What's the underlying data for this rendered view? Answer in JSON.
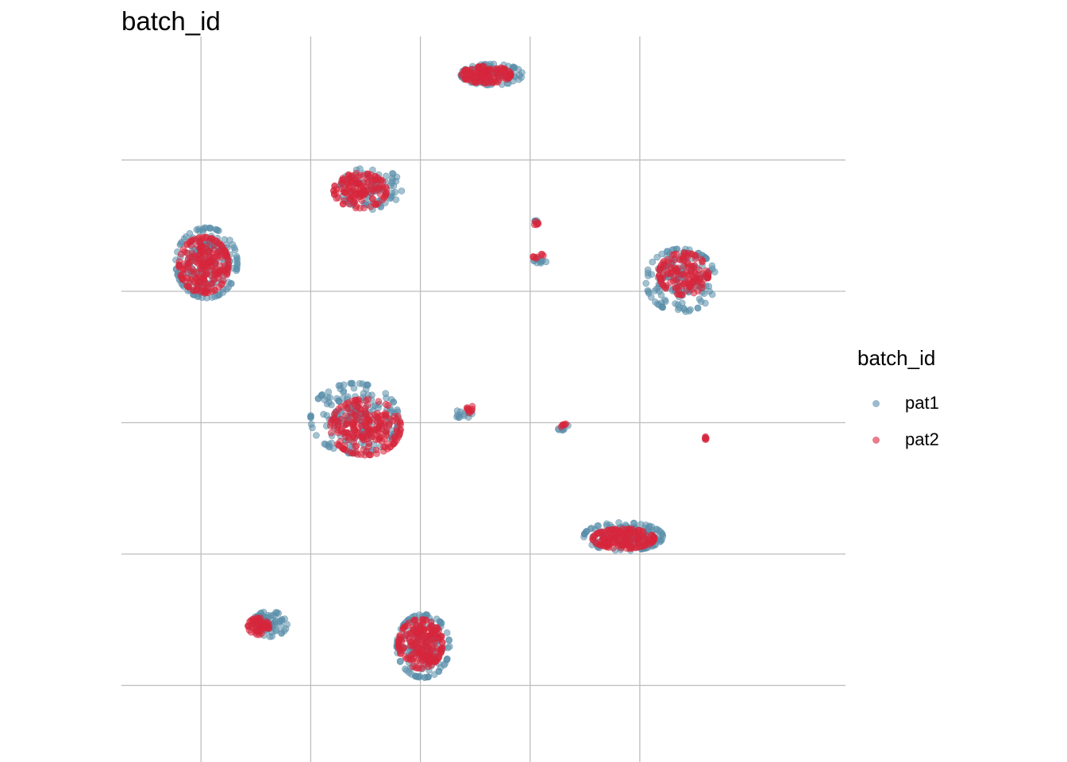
{
  "chart_data": {
    "type": "scatter",
    "title": "batch_id",
    "xlabel": "",
    "ylabel": "",
    "grid": true,
    "axis_ticks_labels": false,
    "xlim": [
      -5.45,
      7.75
    ],
    "ylim": [
      -7.75,
      8.82
    ],
    "x_gridlines": [
      -4,
      -2,
      0,
      2,
      4
    ],
    "y_gridlines": [
      -6,
      -3,
      0,
      3,
      6
    ],
    "legend": {
      "title": "batch_id",
      "position": "right",
      "entries": [
        "pat1",
        "pat2"
      ]
    },
    "series": [
      {
        "name": "pat1",
        "color": "#5A8EAA",
        "clusters": [
          {
            "cx": 1.3,
            "cy": 7.95,
            "spread": [
              0.35,
              0.15
            ],
            "n": 90
          },
          {
            "cx": -0.9,
            "cy": 5.35,
            "spread": [
              0.35,
              0.3
            ],
            "n": 80
          },
          {
            "cx": -3.9,
            "cy": 3.65,
            "spread": [
              0.35,
              0.5
            ],
            "n": 180
          },
          {
            "cx": 2.1,
            "cy": 4.6,
            "spread": [
              0.03,
              0.03
            ],
            "n": 6
          },
          {
            "cx": 2.2,
            "cy": 3.7,
            "spread": [
              0.08,
              0.05
            ],
            "n": 10
          },
          {
            "cx": 4.75,
            "cy": 3.25,
            "spread": [
              0.4,
              0.45
            ],
            "n": 150
          },
          {
            "cx": -1.2,
            "cy": 0.1,
            "spread": [
              0.5,
              0.5
            ],
            "n": 180
          },
          {
            "cx": 0.78,
            "cy": 0.2,
            "spread": [
              0.1,
              0.06
            ],
            "n": 12
          },
          {
            "cx": 2.6,
            "cy": -0.1,
            "spread": [
              0.06,
              0.06
            ],
            "n": 8
          },
          {
            "cx": 3.7,
            "cy": -2.6,
            "spread": [
              0.45,
              0.2
            ],
            "n": 130
          },
          {
            "cx": -2.75,
            "cy": -4.6,
            "spread": [
              0.2,
              0.18
            ],
            "n": 70
          },
          {
            "cx": 0.05,
            "cy": -5.1,
            "spread": [
              0.3,
              0.45
            ],
            "n": 150
          }
        ]
      },
      {
        "name": "pat2",
        "color": "#D7263D",
        "clusters": [
          {
            "cx": 1.2,
            "cy": 7.95,
            "spread": [
              0.28,
              0.12
            ],
            "n": 120
          },
          {
            "cx": -1.1,
            "cy": 5.3,
            "spread": [
              0.3,
              0.25
            ],
            "n": 140
          },
          {
            "cx": -3.95,
            "cy": 3.6,
            "spread": [
              0.28,
              0.4
            ],
            "n": 220
          },
          {
            "cx": 2.1,
            "cy": 4.55,
            "spread": [
              0.03,
              0.03
            ],
            "n": 6
          },
          {
            "cx": 2.15,
            "cy": 3.8,
            "spread": [
              0.06,
              0.04
            ],
            "n": 8
          },
          {
            "cx": 4.8,
            "cy": 3.4,
            "spread": [
              0.28,
              0.3
            ],
            "n": 140
          },
          {
            "cx": -1.0,
            "cy": -0.1,
            "spread": [
              0.4,
              0.4
            ],
            "n": 220
          },
          {
            "cx": 0.9,
            "cy": 0.3,
            "spread": [
              0.08,
              0.05
            ],
            "n": 10
          },
          {
            "cx": 2.6,
            "cy": -0.05,
            "spread": [
              0.04,
              0.04
            ],
            "n": 6
          },
          {
            "cx": 5.2,
            "cy": -0.35,
            "spread": [
              0.02,
              0.02
            ],
            "n": 6
          },
          {
            "cx": 3.7,
            "cy": -2.65,
            "spread": [
              0.35,
              0.14
            ],
            "n": 170
          },
          {
            "cx": -2.95,
            "cy": -4.65,
            "spread": [
              0.12,
              0.12
            ],
            "n": 60
          },
          {
            "cx": 0.0,
            "cy": -5.05,
            "spread": [
              0.25,
              0.35
            ],
            "n": 200
          }
        ]
      }
    ]
  }
}
